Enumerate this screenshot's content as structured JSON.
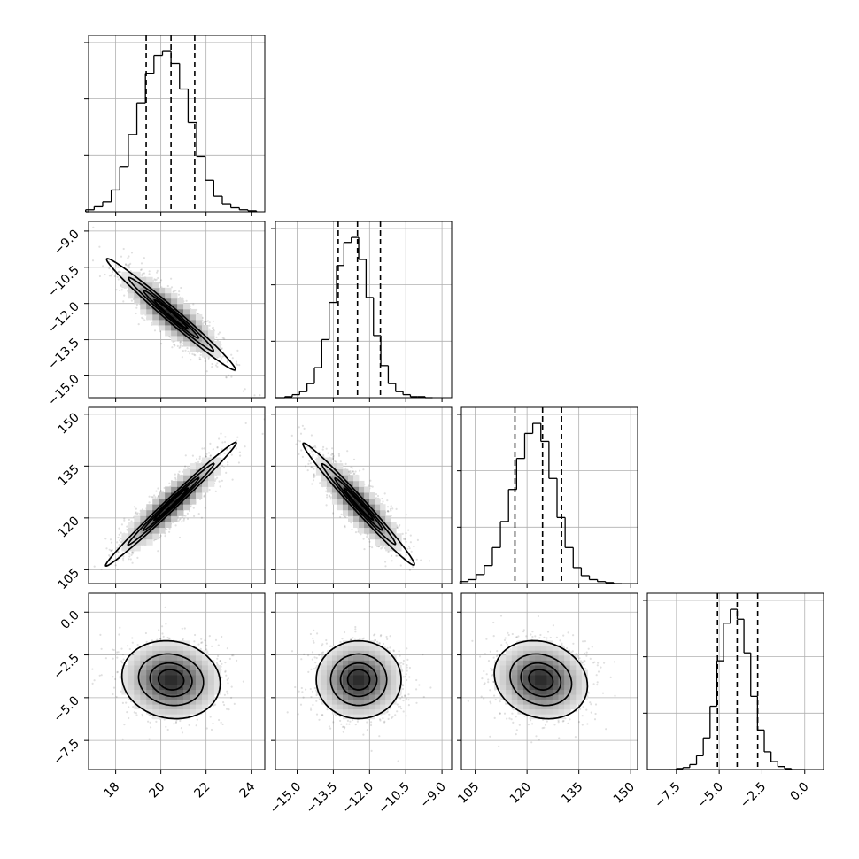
{
  "chart_data": {
    "type": "corner",
    "grid": true,
    "parameters": [
      {
        "range": [
          16.8,
          24.6
        ],
        "ticks": [
          18,
          20,
          22,
          24
        ],
        "tick_labels": [
          "18",
          "20",
          "22",
          "24"
        ],
        "quantiles": [
          19.35,
          20.45,
          21.5
        ],
        "mean": 20.45,
        "sd": 1.05
      },
      {
        "range": [
          -15.9,
          -8.6
        ],
        "ticks": [
          -15.0,
          -13.5,
          -12.0,
          -10.5,
          -9.0
        ],
        "tick_labels": [
          "−15.0",
          "−13.5",
          "−12.0",
          "−10.5",
          "−9.0"
        ],
        "quantiles": [
          -13.3,
          -12.5,
          -11.55
        ],
        "mean": -12.45,
        "sd": 0.85
      },
      {
        "range": [
          101,
          152
        ],
        "ticks": [
          105,
          120,
          135,
          150
        ],
        "tick_labels": [
          "105",
          "120",
          "135",
          "150"
        ],
        "quantiles": [
          116.5,
          124.5,
          130.0
        ],
        "mean": 124,
        "sd": 6.5
      },
      {
        "range": [
          -9.2,
          1.1
        ],
        "ticks": [
          -7.5,
          -5.0,
          -2.5,
          0.0
        ],
        "tick_labels": [
          "−7.5",
          "−5.0",
          "−2.5",
          "0.0"
        ],
        "quantiles": [
          -5.1,
          -3.95,
          -2.75
        ],
        "mean": -3.95,
        "sd": 1.1
      }
    ],
    "histograms": [
      {
        "param": 0,
        "counts": [
          2,
          5,
          10,
          22,
          45,
          78,
          110,
          140,
          158,
          162,
          150,
          124,
          90,
          56,
          32,
          16,
          8,
          4,
          2,
          1
        ]
      },
      {
        "param": 1,
        "counts": [
          1,
          3,
          6,
          14,
          30,
          58,
          95,
          132,
          155,
          160,
          138,
          100,
          62,
          32,
          14,
          6,
          3,
          1,
          1,
          0
        ]
      },
      {
        "param": 2,
        "counts": [
          2,
          4,
          9,
          18,
          36,
          62,
          94,
          125,
          150,
          160,
          142,
          105,
          66,
          36,
          16,
          8,
          4,
          2,
          1,
          0
        ]
      },
      {
        "param": 3,
        "counts": [
          0,
          1,
          2,
          5,
          14,
          32,
          64,
          110,
          148,
          162,
          152,
          118,
          74,
          40,
          18,
          8,
          3,
          1,
          0,
          0
        ]
      }
    ],
    "pairs": [
      {
        "x_param": 0,
        "y_param": 1,
        "correlation": -0.85
      },
      {
        "x_param": 0,
        "y_param": 2,
        "correlation": 0.88
      },
      {
        "x_param": 1,
        "y_param": 2,
        "correlation": -0.85
      },
      {
        "x_param": 0,
        "y_param": 3,
        "correlation": -0.05
      },
      {
        "x_param": 1,
        "y_param": 3,
        "correlation": 0.0
      },
      {
        "x_param": 2,
        "y_param": 3,
        "correlation": -0.08
      }
    ],
    "contour_levels_sigma": [
      0.5,
      1.0,
      1.5,
      2.0
    ],
    "colors": {
      "line": "#000000",
      "grid": "#b0b0b0",
      "scatter": "#000000"
    }
  }
}
